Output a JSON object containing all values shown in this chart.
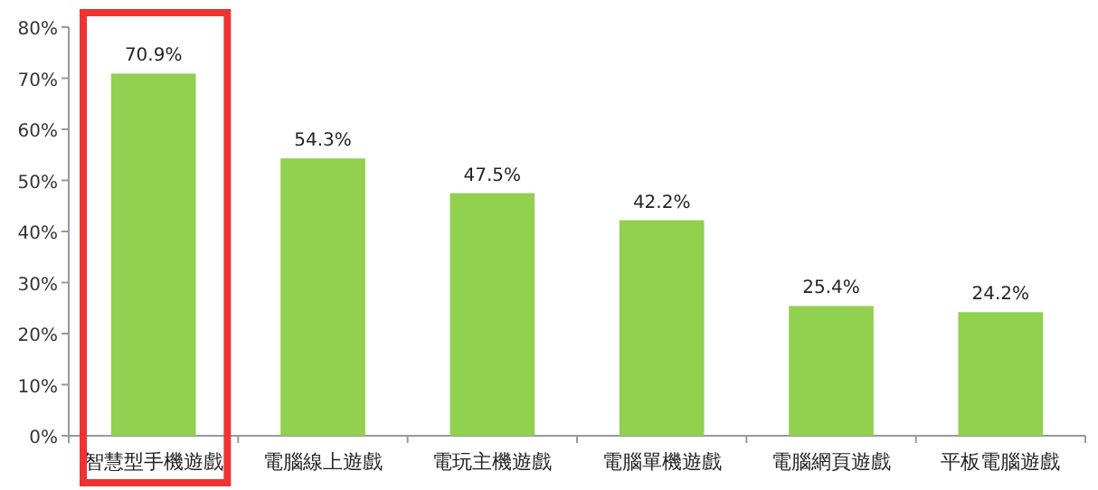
{
  "chart_data": {
    "type": "bar",
    "categories": [
      "智慧型手機遊戲",
      "電腦線上遊戲",
      "電玩主機遊戲",
      "電腦單機遊戲",
      "電腦網頁遊戲",
      "平板電腦遊戲"
    ],
    "values": [
      70.9,
      54.3,
      47.5,
      42.2,
      25.4,
      24.2
    ],
    "value_labels": [
      "70.9%",
      "54.3%",
      "47.5%",
      "42.2%",
      "25.4%",
      "24.2%"
    ],
    "color": "#92d050",
    "ylim": [
      0,
      80
    ],
    "yticks": [
      {
        "value": 0,
        "label": "0%"
      },
      {
        "value": 10,
        "label": "10%"
      },
      {
        "value": 20,
        "label": "20%"
      },
      {
        "value": 30,
        "label": "30%"
      },
      {
        "value": 40,
        "label": "40%"
      },
      {
        "value": 50,
        "label": "50%"
      },
      {
        "value": 60,
        "label": "60%"
      },
      {
        "value": 70,
        "label": "70%"
      },
      {
        "value": 80,
        "label": "80%"
      }
    ],
    "grid": false
  }
}
